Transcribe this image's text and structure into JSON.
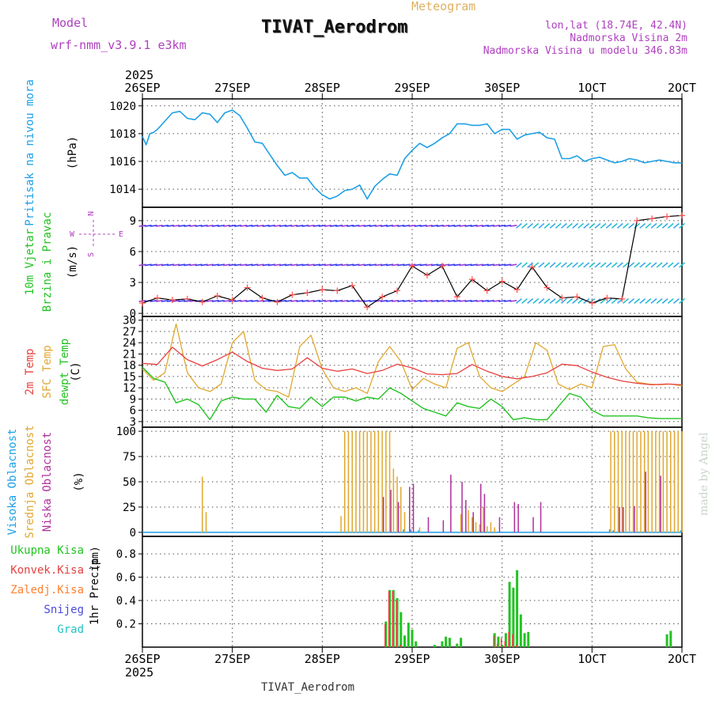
{
  "header": {
    "model_label": "Model",
    "model_name": "wrf-nmm_v3.9.1 e3km",
    "product": "Meteogram",
    "station": "TIVAT_Aerodrom",
    "lonlat": "lon,lat (18.74E, 42.4N)",
    "elevation": "Nadmorska Visina 2m",
    "model_elevation": "Nadmorska Visina u modelu 346.83m",
    "footer_station": "TIVAT_Aerodrom",
    "credit": "made by Angel"
  },
  "colors": {
    "pressure": "#1ea0e6",
    "t2m": "#e84040",
    "sfc": "#e0a830",
    "dew": "#22c322",
    "wind_speed": "#000000",
    "wind_marker": "#ff5050",
    "cloud_high": "#1ea0e6",
    "cloud_mid": "#e0a830",
    "cloud_low": "#b0309a",
    "precip_total": "#22c322",
    "precip_conv": "#e84040",
    "precip_frz": "#ff8030",
    "precip_snow": "#4a4adc",
    "precip_hail": "#22c3c3",
    "model_text": "#b040c0",
    "product_text": "#e0b060",
    "wind_barb": "#3c3cf0"
  },
  "chart_data": {
    "type": "meteogram",
    "year": "2025",
    "x_tick_labels": [
      "26SEP",
      "27SEP",
      "28SEP",
      "29SEP",
      "30SEP",
      "1OCT",
      "2OCT"
    ],
    "x_range_hours": [
      0,
      144
    ],
    "panels": [
      {
        "id": "pressure",
        "type": "line",
        "ylabels": [
          "Pritisak na nivou mora"
        ],
        "unit": "(hPa)",
        "ylim": [
          1012.7,
          1020.5
        ],
        "yticks": [
          1014,
          1016,
          1018,
          1020
        ],
        "series": [
          {
            "name": "Pritisak na nivou mora",
            "x": [
              0,
              1,
              2,
              3,
              4,
              5,
              6,
              8,
              10,
              12,
              14,
              16,
              18,
              20,
              22,
              24,
              26,
              28,
              30,
              32,
              34,
              36,
              38,
              40,
              42,
              44,
              46,
              48,
              50,
              52,
              54,
              56,
              58,
              60,
              62,
              64,
              66,
              68,
              70,
              72,
              74,
              76,
              78,
              80,
              82,
              84,
              86,
              88,
              90,
              92,
              94,
              96,
              98,
              100,
              102,
              104,
              106,
              108,
              110,
              112,
              114,
              116,
              118,
              120,
              122,
              124,
              126,
              128,
              130,
              132,
              134,
              136,
              138,
              140,
              142,
              144
            ],
            "y": [
              1017.8,
              1017.2,
              1018.0,
              1018.1,
              1018.3,
              1018.6,
              1018.9,
              1019.5,
              1019.6,
              1019.1,
              1019.0,
              1019.5,
              1019.4,
              1018.8,
              1019.5,
              1019.7,
              1019.3,
              1018.4,
              1017.4,
              1017.3,
              1016.5,
              1015.7,
              1015.0,
              1015.2,
              1014.8,
              1014.8,
              1014.1,
              1013.6,
              1013.3,
              1013.5,
              1013.9,
              1014.0,
              1014.3,
              1013.3,
              1014.2,
              1014.7,
              1015.1,
              1015.0,
              1016.2,
              1016.8,
              1017.3,
              1017.0,
              1017.3,
              1017.7,
              1018.0,
              1018.7,
              1018.7,
              1018.6,
              1018.6,
              1018.7,
              1018.0,
              1018.3,
              1018.3,
              1017.6,
              1017.9,
              1018.0,
              1018.1,
              1017.7,
              1017.6,
              1016.2,
              1016.2,
              1016.4,
              1016.0,
              1016.2,
              1016.3,
              1016.1,
              1015.9,
              1016.0,
              1016.2,
              1016.1,
              1015.9,
              1016.0,
              1016.1,
              1016.0,
              1015.9,
              1015.9
            ]
          }
        ]
      },
      {
        "id": "wind",
        "type": "line+barbs",
        "ylabels": [
          "10m Vjetar",
          "Brzina i Pravac"
        ],
        "unit": "(m/s)",
        "ylim": [
          -0.3,
          10.3
        ],
        "yticks": [
          0,
          3,
          6,
          9
        ],
        "compass": {
          "n": "N",
          "s": "S",
          "e": "E",
          "w": "W"
        },
        "barb_levels": [
          1.2,
          4.7,
          8.5
        ],
        "series": [
          {
            "name": "10m wind speed",
            "x": [
              0,
              4,
              8,
              12,
              16,
              20,
              24,
              28,
              32,
              36,
              40,
              44,
              48,
              52,
              56,
              60,
              64,
              68,
              72,
              76,
              80,
              84,
              88,
              92,
              96,
              100,
              104,
              108,
              112,
              116,
              120,
              124,
              128,
              132,
              136,
              140,
              144
            ],
            "y": [
              1.0,
              1.5,
              1.3,
              1.4,
              1.1,
              1.7,
              1.3,
              2.5,
              1.5,
              1.1,
              1.8,
              2.0,
              2.3,
              2.2,
              2.7,
              0.6,
              1.6,
              2.2,
              4.6,
              3.7,
              4.6,
              1.6,
              3.3,
              2.2,
              3.1,
              2.3,
              4.5,
              2.5,
              1.5,
              1.6,
              1.0,
              1.5,
              1.4,
              9.0,
              9.2,
              9.4,
              9.5
            ]
          }
        ]
      },
      {
        "id": "temperature",
        "type": "line",
        "ylabels": [
          "2m Temp",
          "SFC Temp",
          "dewpt Temp"
        ],
        "unit": "(C)",
        "ylim": [
          1.5,
          31
        ],
        "yticks": [
          3,
          6,
          9,
          12,
          15,
          18,
          21,
          24,
          27,
          30
        ],
        "series": [
          {
            "name": "2m Temp",
            "x": [
              0,
              4,
              8,
              12,
              16,
              20,
              24,
              28,
              32,
              36,
              40,
              44,
              48,
              52,
              56,
              60,
              64,
              68,
              72,
              76,
              80,
              84,
              88,
              92,
              96,
              100,
              104,
              108,
              112,
              116,
              120,
              124,
              128,
              132,
              136,
              140,
              144
            ],
            "y": [
              18.5,
              18.2,
              22.8,
              19.5,
              17.8,
              19.5,
              21.5,
              19.0,
              17.2,
              16.6,
              17.0,
              20.0,
              17.2,
              16.4,
              17.0,
              15.8,
              16.6,
              18.3,
              17.3,
              15.7,
              15.5,
              15.8,
              18.2,
              16.4,
              15.0,
              14.4,
              15.0,
              16.0,
              18.3,
              17.9,
              16.2,
              14.8,
              13.8,
              13.2,
              12.8,
              13.0,
              12.8
            ]
          },
          {
            "name": "SFC Temp",
            "x": [
              0,
              3,
              6,
              9,
              12,
              15,
              18,
              21,
              24,
              27,
              30,
              33,
              36,
              39,
              42,
              45,
              48,
              51,
              54,
              57,
              60,
              63,
              66,
              69,
              72,
              75,
              78,
              81,
              84,
              87,
              90,
              93,
              96,
              99,
              102,
              105,
              108,
              111,
              114,
              117,
              120,
              123,
              126,
              129,
              132,
              135,
              138,
              141,
              144
            ],
            "y": [
              17.0,
              14.0,
              16.0,
              29.0,
              16.0,
              12.0,
              11.0,
              13.0,
              24.0,
              27.0,
              14.0,
              11.5,
              11.0,
              9.5,
              23.0,
              26.0,
              17.0,
              12.0,
              11.0,
              12.0,
              10.5,
              19.0,
              23.0,
              19.0,
              11.5,
              14.5,
              13.0,
              12.0,
              22.5,
              24.0,
              15.0,
              12.0,
              11.0,
              13.0,
              15.0,
              24.0,
              22.0,
              13.0,
              11.5,
              13.0,
              12.0,
              23.0,
              23.5,
              17.0,
              13.5,
              13.0,
              12.8,
              13.0,
              12.5
            ]
          },
          {
            "name": "dewpt Temp",
            "x": [
              0,
              3,
              6,
              9,
              12,
              15,
              18,
              21,
              24,
              27,
              30,
              33,
              36,
              39,
              42,
              45,
              48,
              51,
              54,
              57,
              60,
              63,
              66,
              69,
              72,
              75,
              78,
              81,
              84,
              87,
              90,
              93,
              96,
              99,
              102,
              105,
              108,
              111,
              114,
              117,
              120,
              123,
              126,
              129,
              132,
              135,
              138,
              141,
              144
            ],
            "y": [
              17.5,
              14.5,
              13.5,
              8.0,
              9.0,
              7.5,
              3.5,
              8.5,
              9.5,
              9.0,
              9.0,
              5.5,
              10.0,
              7.0,
              6.5,
              9.5,
              7.0,
              9.5,
              9.5,
              8.5,
              9.5,
              9.0,
              12.0,
              10.5,
              8.5,
              6.5,
              5.5,
              4.5,
              8.0,
              7.0,
              6.5,
              9.0,
              7.0,
              3.5,
              4.0,
              3.5,
              3.5,
              7.0,
              10.5,
              9.5,
              6.0,
              4.5,
              4.5,
              4.5,
              4.5,
              4.0,
              3.8,
              3.8,
              3.8
            ]
          }
        ]
      },
      {
        "id": "clouds",
        "type": "bar",
        "ylabels": [
          "Visoka Oblacnost",
          "Srednja Oblacnost",
          "Niska Oblacnost"
        ],
        "unit": "(%)",
        "ylim": [
          -4,
          104
        ],
        "yticks": [
          0,
          25,
          50,
          75,
          100
        ],
        "series": [
          {
            "name": "Visoka Oblacnost",
            "x": [
              70,
              72,
              74,
              125,
              126,
              144
            ],
            "values": [
              3,
              3,
              2,
              3,
              2,
              2
            ]
          },
          {
            "name": "Srednja Oblacnost",
            "x": [
              16,
              17,
              53,
              54,
              55,
              56,
              57,
              58,
              59,
              60,
              61,
              62,
              63,
              64,
              65,
              66,
              67,
              68,
              69,
              70,
              74,
              85,
              87,
              88,
              89,
              90,
              91,
              92,
              93,
              94,
              125,
              126,
              127,
              128,
              129,
              130,
              131,
              132,
              133,
              134,
              135,
              136,
              137,
              138,
              139,
              140,
              141,
              142,
              143,
              144
            ],
            "values": [
              55,
              20,
              16,
              100,
              100,
              100,
              100,
              100,
              100,
              100,
              100,
              100,
              100,
              100,
              100,
              100,
              63,
              55,
              45,
              20,
              5,
              18,
              22,
              15,
              10,
              8,
              25,
              6,
              10,
              5,
              100,
              100,
              100,
              100,
              100,
              100,
              100,
              100,
              100,
              100,
              100,
              100,
              100,
              100,
              100,
              100,
              100,
              100,
              100,
              100
            ]
          },
          {
            "name": "Niska Oblacnost",
            "x": [
              64,
              66,
              68,
              71,
              72,
              76,
              80,
              82,
              85,
              86,
              88,
              90,
              91,
              95,
              99,
              100,
              104,
              106,
              127,
              128,
              131,
              134,
              138
            ],
            "values": [
              35,
              42,
              30,
              45,
              48,
              15,
              12,
              57,
              50,
              32,
              20,
              48,
              38,
              15,
              30,
              28,
              15,
              30,
              25,
              25,
              26,
              60,
              56
            ]
          }
        ]
      },
      {
        "id": "precip",
        "type": "bar",
        "ylabels": [
          "Ukupna Kisa",
          "Konvek.Kisa",
          "Zaledj.Kisa",
          "Snijeg",
          "Grad"
        ],
        "precip_title": "1hr Precip",
        "unit": "(mm)",
        "ylim": [
          0,
          0.95
        ],
        "yticks": [
          0.2,
          0.4,
          0.6,
          0.8
        ],
        "series": [
          {
            "name": "Ukupna Kisa",
            "x": [
              65,
              66,
              67,
              68,
              69,
              70,
              71,
              72,
              73,
              78,
              80,
              81,
              82,
              84,
              85,
              94,
              95,
              96,
              97,
              98,
              99,
              100,
              101,
              102,
              103,
              140,
              141
            ],
            "values": [
              0.22,
              0.49,
              0.49,
              0.42,
              0.3,
              0.1,
              0.21,
              0.15,
              0.05,
              0.02,
              0.05,
              0.09,
              0.08,
              0.03,
              0.08,
              0.12,
              0.09,
              0.02,
              0.12,
              0.56,
              0.51,
              0.66,
              0.28,
              0.12,
              0.13,
              0.11,
              0.14
            ]
          },
          {
            "name": "Konvek.Kisa",
            "x": [
              65,
              66,
              67,
              68,
              69,
              94,
              95,
              96,
              97,
              98,
              99,
              100
            ],
            "values": [
              0.2,
              0.48,
              0.48,
              0.4,
              0.02,
              0.1,
              0.03,
              0.08,
              0.05,
              0.13,
              0.11,
              0.02
            ]
          }
        ]
      }
    ]
  }
}
